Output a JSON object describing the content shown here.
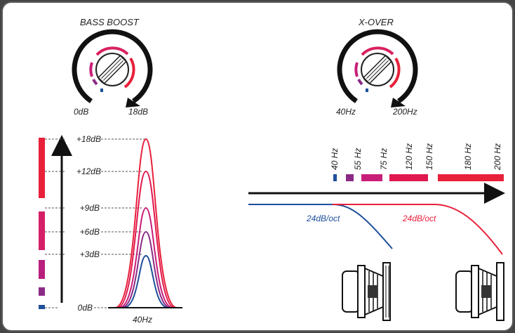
{
  "bass_boost": {
    "title": "BASS BOOST",
    "min_label": "0dB",
    "max_label": "18dB"
  },
  "xover": {
    "title": "X-OVER",
    "min_label": "40Hz",
    "max_label": "200Hz"
  },
  "boost_chart": {
    "levels": [
      "+18dB",
      "+12dB",
      "+9dB",
      "+6dB",
      "+3dB",
      "0dB"
    ],
    "x_label": "40Hz"
  },
  "frequency_scale": {
    "labels": [
      "40 Hz",
      "55 Hz",
      "75 Hz",
      "120 Hz",
      "150 Hz",
      "180 Hz",
      "200 Hz"
    ]
  },
  "slopes": {
    "left": "24dB/oct",
    "right": "24dB/oct"
  },
  "colors": {
    "blue": "#1f4f9a",
    "purple": "#8b2a86",
    "magenta": "#c81e78",
    "pink": "#e0184f",
    "red": "#e8203a"
  }
}
